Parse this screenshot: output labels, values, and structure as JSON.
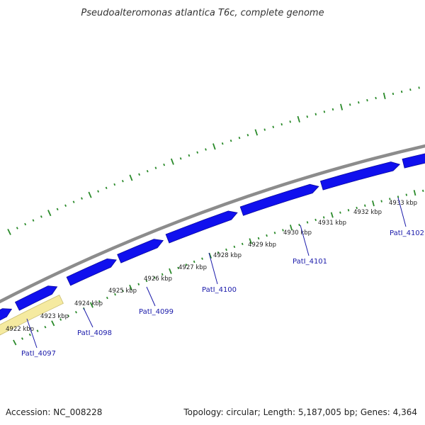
{
  "title": "Pseudoalteromonas atlantica T6c, complete genome",
  "footer": {
    "accession": "Accession: NC_008228",
    "summary": "Topology: circular; Length: 5,187,005 bp; Genes: 4,364"
  },
  "colors": {
    "backbone": "#8c8c8c",
    "forward_gene": "#1010ee",
    "reverse_gene_pink": "#ee1a8c",
    "reverse_gene_pale": "#f5eaa0",
    "tick": "#2a8a2a",
    "label_line": "#1a1aaa"
  },
  "kbp_labels": [
    "4922 kbp",
    "4923 kbp",
    "4924 kbp",
    "4925 kbp",
    "4926 kbp",
    "4927 kbp",
    "4928 kbp",
    "4929 kbp",
    "4930 kbp",
    "4931 kbp",
    "4932 kbp",
    "4933 kbp"
  ],
  "gene_labels": [
    "PatI_4097",
    "PatI_4098",
    "PatI_4099",
    "PatI_4100",
    "PatI_4101",
    "PatI_4102"
  ]
}
